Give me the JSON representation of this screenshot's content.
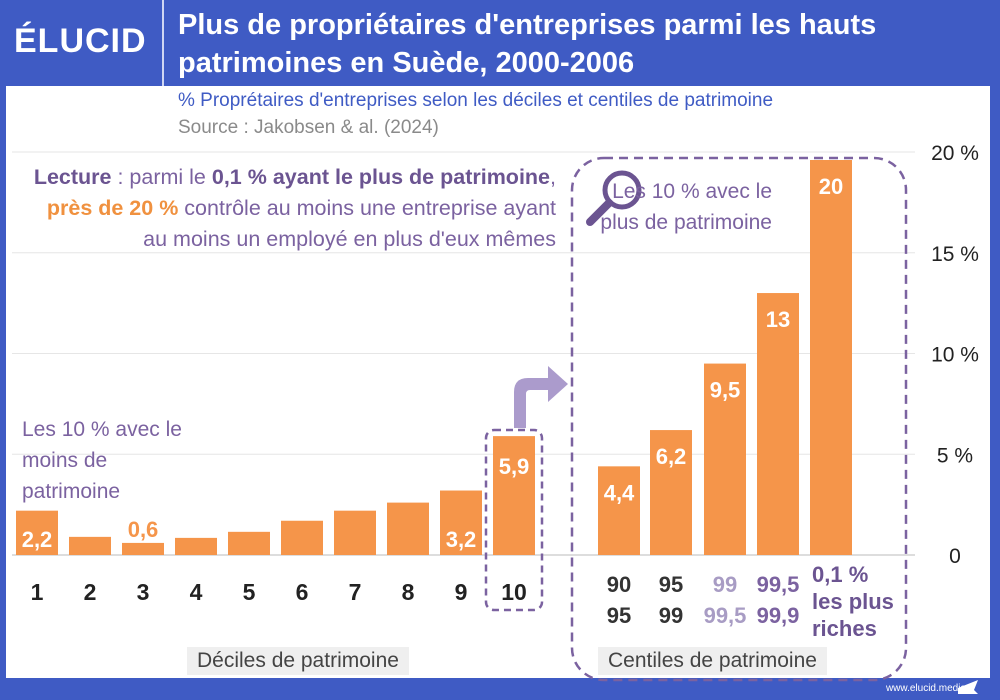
{
  "brand": "ÉLUCID",
  "title": "Plus de propriétaires d'entreprises parmi les hauts patrimoines en Suède, 2000-2006",
  "subtitle": "% Proprétaires d'entreprises selon les déciles et centiles de patrimoine",
  "source": "Source : Jakobsen & al. (2024)",
  "lecture": {
    "p1": "Lecture",
    "p2": " : parmi le ",
    "p3": "0,1 % ayant le plus de patrimoine",
    "p4": ", ",
    "p5": "près de 20 %",
    "p6": " contrôle au moins une entreprise ayant au moins un employé en plus d'eux mêmes"
  },
  "annotations": {
    "bottom10": "Les 10 % avec le moins de patrimoine",
    "top10": "Les 10 % avec le plus de patrimoine"
  },
  "footer": "www.elucid.media",
  "colors": {
    "bar": "#f5954a",
    "frame": "#3f5bc4",
    "accent": "#7b62a0"
  },
  "chart_data": {
    "type": "bar",
    "ylim": [
      0,
      20
    ],
    "yticks": [
      "0",
      "5 %",
      "10 %",
      "15 %",
      "20 %"
    ],
    "ytick_values": [
      0,
      5,
      10,
      15,
      20
    ],
    "grid": true,
    "deciles": {
      "xlabel": "Déciles de patrimoine",
      "categories": [
        "1",
        "2",
        "3",
        "4",
        "5",
        "6",
        "7",
        "8",
        "9",
        "10"
      ],
      "values": [
        2.2,
        0.9,
        0.6,
        0.85,
        1.15,
        1.7,
        2.2,
        2.6,
        3.2,
        5.9
      ],
      "labels": [
        "2,2",
        "",
        "0,6",
        "",
        "",
        "",
        "",
        "",
        "3,2",
        "5,9"
      ]
    },
    "centiles": {
      "xlabel": "Centiles de patrimoine",
      "categories": [
        [
          "90",
          "95"
        ],
        [
          "95",
          "99"
        ],
        [
          "99",
          "99,5"
        ],
        [
          "99,5",
          "99,9"
        ],
        [
          "0,1 %",
          "les plus",
          "riches"
        ]
      ],
      "values": [
        4.4,
        6.2,
        9.5,
        13,
        20
      ],
      "labels": [
        "4,4",
        "6,2",
        "9,5",
        "13",
        "20"
      ]
    }
  }
}
